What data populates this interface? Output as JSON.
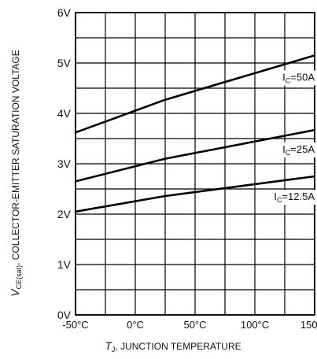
{
  "chart_data": {
    "type": "line",
    "title": "",
    "xlabel": "Tj, JUNCTION TEMPERATURE",
    "xlabel_symbol": "T",
    "xlabel_subscript": "J",
    "xlabel_text": ", JUNCTION TEMPERATURE",
    "ylabel": "VCE(sat), COLLECTOR-EMITTER SATURATION VOLTAGE",
    "ylabel_symbol": "V",
    "ylabel_subscript": "CE(sat)",
    "ylabel_text": ", COLLECTOR-EMITTER SATURATION VOLTAGE",
    "xlim": [
      -50,
      150
    ],
    "ylim": [
      0,
      6
    ],
    "grid": true,
    "grid_x_step": 25,
    "grid_y_step": 0.5,
    "x_ticks": [
      {
        "value": -50,
        "label": "-50°C"
      },
      {
        "value": 0,
        "label": "0°C"
      },
      {
        "value": 50,
        "label": "50°C"
      },
      {
        "value": 100,
        "label": "100°C"
      },
      {
        "value": 150,
        "label": "150°C"
      }
    ],
    "y_ticks": [
      {
        "value": 0,
        "label": "0V"
      },
      {
        "value": 1,
        "label": "1V"
      },
      {
        "value": 2,
        "label": "2V"
      },
      {
        "value": 3,
        "label": "3V"
      },
      {
        "value": 4,
        "label": "4V"
      },
      {
        "value": 5,
        "label": "5V"
      },
      {
        "value": 6,
        "label": "6V"
      }
    ],
    "series": [
      {
        "label_main": "I",
        "label_sub": "C",
        "label_rest": "=50A",
        "x": [
          -50,
          25,
          150
        ],
        "y": [
          3.62,
          4.27,
          5.15
        ],
        "label_anchor": {
          "x": 150,
          "y": 4.65
        }
      },
      {
        "label_main": "I",
        "label_sub": "C",
        "label_rest": "=25A",
        "x": [
          -50,
          25,
          150
        ],
        "y": [
          2.65,
          3.1,
          3.67
        ],
        "label_anchor": {
          "x": 150,
          "y": 3.22
        }
      },
      {
        "label_main": "I",
        "label_sub": "C",
        "label_rest": "=12.5A",
        "x": [
          -50,
          25,
          150
        ],
        "y": [
          2.05,
          2.36,
          2.75
        ],
        "label_anchor": {
          "x": 150,
          "y": 2.28
        }
      }
    ]
  }
}
